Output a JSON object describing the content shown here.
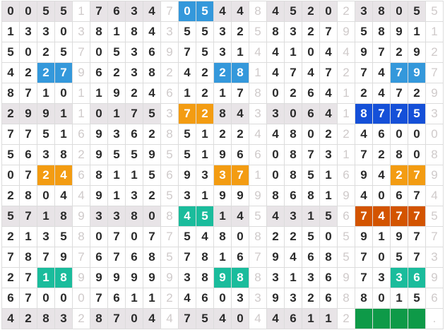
{
  "colors": {
    "blue": "#3498db",
    "orange": "#f39c12",
    "teal": "#1abc9c",
    "dark_blue": "#1550d8",
    "dark_orange": "#d35400",
    "green": "#0e9a48",
    "shade": "#e8e4e7"
  },
  "rows": [
    {
      "groups": [
        "0055",
        "7634",
        "0544",
        "4520",
        "3805"
      ],
      "seps": [
        "1",
        "7",
        "8",
        "2",
        "5"
      ]
    },
    {
      "groups": [
        "1330",
        "8184",
        "5532",
        "8327",
        "5891"
      ],
      "seps": [
        "3",
        "3",
        "5",
        "9",
        "1"
      ]
    },
    {
      "groups": [
        "5025",
        "0536",
        "7531",
        "4104",
        "9729"
      ],
      "seps": [
        "7",
        "9",
        "4",
        "4",
        "2"
      ]
    },
    {
      "groups": [
        "4227",
        "6238",
        "4228",
        "4747",
        "7479"
      ],
      "seps": [
        "9",
        "2",
        "1",
        "2",
        "7"
      ]
    },
    {
      "groups": [
        "8710",
        "1924",
        "1217",
        "0264",
        "2472"
      ],
      "seps": [
        "1",
        "6",
        "8",
        "1",
        "9"
      ]
    },
    {
      "groups": [
        "2991",
        "0175",
        "7284",
        "3064",
        "8775"
      ],
      "seps": [
        "1",
        "3",
        "3",
        "1",
        "3"
      ]
    },
    {
      "groups": [
        "7751",
        "9362",
        "5122",
        "4802",
        "4600"
      ],
      "seps": [
        "6",
        "8",
        "4",
        "2",
        "0"
      ]
    },
    {
      "groups": [
        "5638",
        "9559",
        "5196",
        "0873",
        "7280"
      ],
      "seps": [
        "2",
        "5",
        "6",
        "1",
        "8"
      ]
    },
    {
      "groups": [
        "0724",
        "8115",
        "9337",
        "0851",
        "9427"
      ],
      "seps": [
        "6",
        "6",
        "1",
        "6",
        "9"
      ]
    },
    {
      "groups": [
        "2804",
        "9132",
        "3199",
        "8681",
        "4067"
      ],
      "seps": [
        "4",
        "5",
        "9",
        "9",
        "4"
      ]
    },
    {
      "groups": [
        "5718",
        "3380",
        "4514",
        "4315",
        "7477"
      ],
      "seps": [
        "9",
        "8",
        "5",
        "6",
        "5"
      ]
    },
    {
      "groups": [
        "2135",
        "0707",
        "5480",
        "2250",
        "9197"
      ],
      "seps": [
        "8",
        "7",
        "8",
        "5",
        "7"
      ]
    },
    {
      "groups": [
        "7879",
        "6768",
        "7816",
        "9468",
        "7057"
      ],
      "seps": [
        "7",
        "5",
        "7",
        "5",
        "3"
      ]
    },
    {
      "groups": [
        "2718",
        "9999",
        "3898",
        "3136",
        "7336"
      ],
      "seps": [
        "9",
        "9",
        "8",
        "9",
        "9"
      ]
    },
    {
      "groups": [
        "6700",
        "7611",
        "4603",
        "9326",
        "8015"
      ],
      "seps": [
        "0",
        "2",
        "3",
        "8",
        "6"
      ]
    },
    {
      "groups": [
        "4283",
        "8704",
        "7540",
        "4611",
        "    "
      ],
      "seps": [
        "2",
        "4",
        "4",
        "2",
        "."
      ]
    }
  ],
  "shaded_rows": [
    0,
    5,
    10,
    15
  ],
  "highlights": [
    {
      "row": 0,
      "group": 2,
      "cols": [
        0,
        1
      ],
      "color": "blue"
    },
    {
      "row": 3,
      "group": 0,
      "cols": [
        2,
        3
      ],
      "color": "blue"
    },
    {
      "row": 3,
      "group": 2,
      "cols": [
        2,
        3
      ],
      "color": "blue"
    },
    {
      "row": 3,
      "group": 4,
      "cols": [
        2,
        3
      ],
      "color": "blue"
    },
    {
      "row": 5,
      "group": 2,
      "cols": [
        0,
        1
      ],
      "color": "orange"
    },
    {
      "row": 5,
      "group": 4,
      "cols": [
        0,
        1,
        2,
        3
      ],
      "color": "dark_blue"
    },
    {
      "row": 8,
      "group": 0,
      "cols": [
        2,
        3
      ],
      "color": "orange"
    },
    {
      "row": 8,
      "group": 2,
      "cols": [
        2,
        3
      ],
      "color": "orange"
    },
    {
      "row": 8,
      "group": 4,
      "cols": [
        2,
        3
      ],
      "color": "orange"
    },
    {
      "row": 10,
      "group": 2,
      "cols": [
        0,
        1
      ],
      "color": "teal"
    },
    {
      "row": 10,
      "group": 4,
      "cols": [
        0,
        1,
        2,
        3
      ],
      "color": "dark_orange"
    },
    {
      "row": 13,
      "group": 0,
      "cols": [
        2,
        3
      ],
      "color": "teal"
    },
    {
      "row": 13,
      "group": 2,
      "cols": [
        2,
        3
      ],
      "color": "teal"
    },
    {
      "row": 13,
      "group": 4,
      "cols": [
        2,
        3
      ],
      "color": "teal"
    },
    {
      "row": 15,
      "group": 4,
      "cols": [
        0,
        1,
        2,
        3
      ],
      "color": "green"
    }
  ]
}
